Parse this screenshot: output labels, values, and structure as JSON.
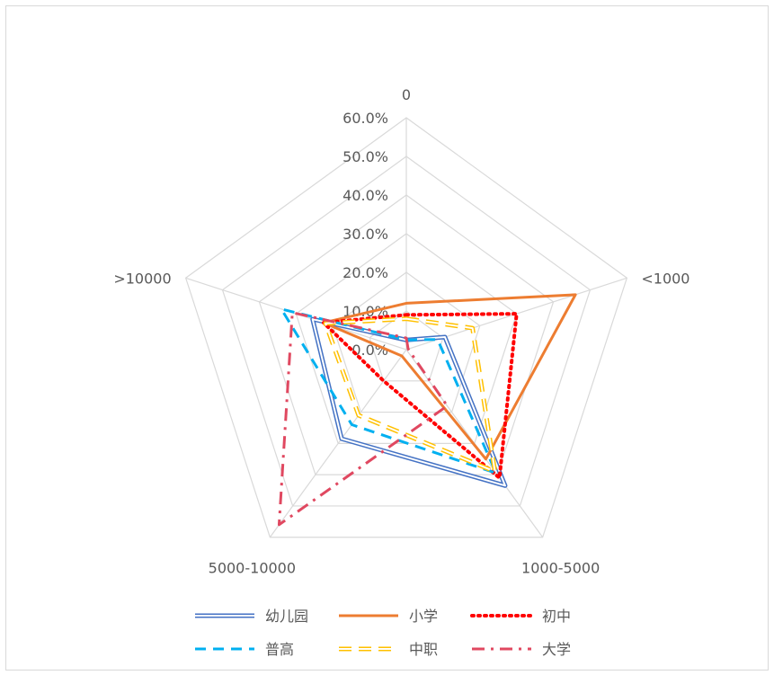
{
  "chart_data": {
    "type": "radar",
    "categories": [
      "0",
      "<1000",
      "1000-5000",
      "5000-10000",
      ">10000"
    ],
    "ticks": [
      "0.0%",
      "10.0%",
      "20.0%",
      "30.0%",
      "40.0%",
      "50.0%",
      "60.0%"
    ],
    "rmax": 60,
    "grid": true,
    "legend_position": "bottom",
    "series": [
      {
        "name": "幼儿园",
        "values": [
          2.5,
          10.5,
          43.5,
          28.5,
          25.5
        ],
        "color": "#4472c4",
        "style": "double"
      },
      {
        "name": "小学",
        "values": [
          12.0,
          46.0,
          35.0,
          2.0,
          22.5
        ],
        "color": "#ed7d31",
        "style": "solid"
      },
      {
        "name": "初中",
        "values": [
          9.0,
          30.0,
          41.0,
          10.0,
          22.5
        ],
        "color": "#ff0000",
        "style": "dot"
      },
      {
        "name": "普高",
        "values": [
          2.5,
          8.5,
          39.5,
          24.0,
          34.0
        ],
        "color": "#00b0f0",
        "style": "dash"
      },
      {
        "name": "中职",
        "values": [
          8.0,
          18.0,
          39.0,
          21.0,
          22.0
        ],
        "color": "#ffc000",
        "style": "double-dash"
      },
      {
        "name": "大学",
        "values": [
          3.0,
          0.5,
          18.0,
          56.0,
          31.0
        ],
        "color": "#e04860",
        "style": "dashdot"
      }
    ]
  }
}
